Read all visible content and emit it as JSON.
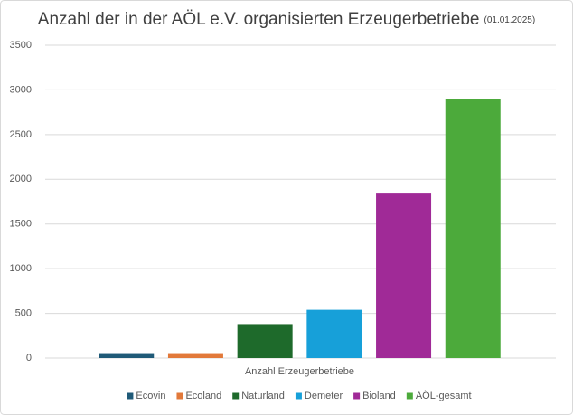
{
  "chart_data": {
    "type": "bar",
    "title": "Anzahl der in der AÖL e.V. organisierten Erzeugerbetriebe",
    "subtitle": "(01.01.2025)",
    "categories": [
      "Anzahl Erzeugerbetriebe"
    ],
    "series": [
      {
        "name": "Ecovin",
        "color": "#1f5a78",
        "values": [
          55
        ]
      },
      {
        "name": "Ecoland",
        "color": "#e2793a",
        "values": [
          55
        ]
      },
      {
        "name": "Naturland",
        "color": "#1e6a2b",
        "values": [
          380
        ]
      },
      {
        "name": "Demeter",
        "color": "#17a0d9",
        "values": [
          540
        ]
      },
      {
        "name": "Bioland",
        "color": "#a02a97",
        "values": [
          1840
        ]
      },
      {
        "name": "AÖL-gesamt",
        "color": "#4caa3b",
        "values": [
          2900
        ]
      }
    ],
    "ylim": [
      0,
      3500
    ],
    "yticks": [
      0,
      500,
      1000,
      1500,
      2000,
      2500,
      3000,
      3500
    ],
    "grid": true,
    "legend": "bottom"
  }
}
